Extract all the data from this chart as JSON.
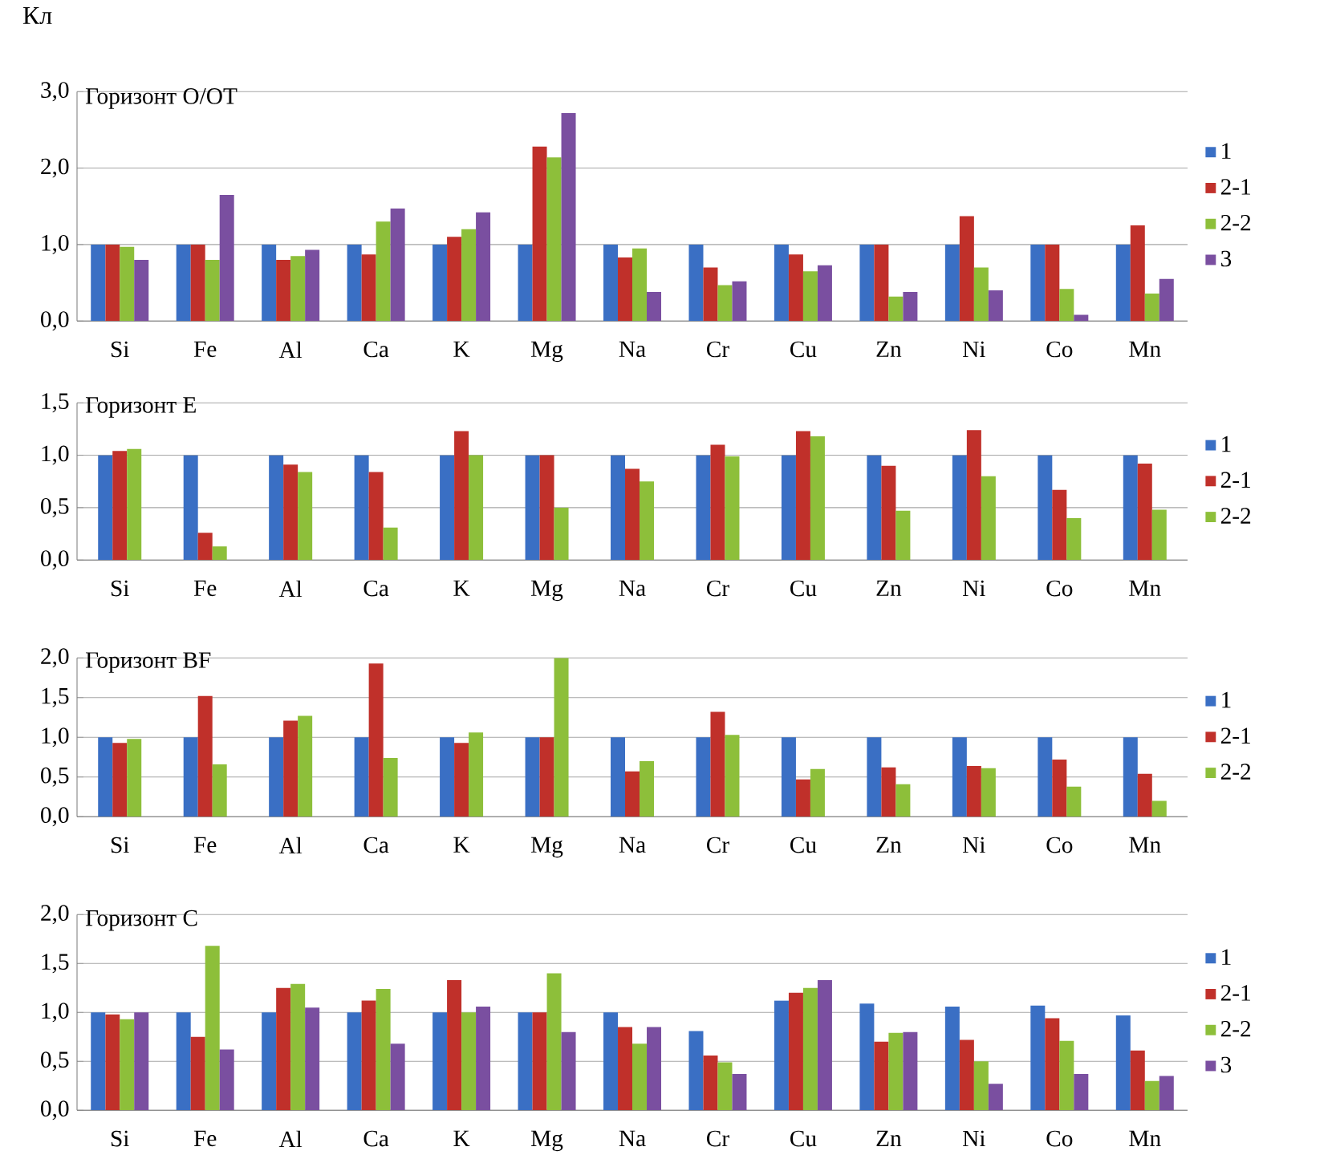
{
  "chart_data": [
    {
      "type": "bar",
      "title": "Горизонт O/OT",
      "ylabel": "Кл",
      "categories": [
        "Si",
        "Fe",
        "Al",
        "Ca",
        "K",
        "Mg",
        "Na",
        "Cr",
        "Cu",
        "Zn",
        "Ni",
        "Co",
        "Mn"
      ],
      "ylim": [
        0,
        3
      ],
      "yticks": [
        {
          "value": 0,
          "label": "0,0"
        },
        {
          "value": 1,
          "label": "1,0"
        },
        {
          "value": 2,
          "label": "2,0"
        },
        {
          "value": 3,
          "label": "3,0"
        }
      ],
      "grid": "y",
      "legend": "right",
      "series": [
        {
          "name": "1",
          "color": "#3a6fc4",
          "values": [
            1,
            1,
            1,
            1,
            1,
            1,
            1,
            1,
            1,
            1,
            1,
            1,
            1
          ]
        },
        {
          "name": "2-1",
          "color": "#c0302a",
          "values": [
            1.0,
            1.0,
            0.8,
            0.87,
            1.1,
            2.28,
            0.83,
            0.7,
            0.87,
            1.0,
            1.37,
            1.0,
            1.25
          ]
        },
        {
          "name": "2-2",
          "color": "#8dbf3a",
          "values": [
            0.97,
            0.8,
            0.85,
            1.3,
            1.2,
            2.14,
            0.95,
            0.47,
            0.65,
            0.32,
            0.7,
            0.42,
            0.36
          ]
        },
        {
          "name": "3",
          "color": "#7a4fa0",
          "values": [
            0.8,
            1.65,
            0.93,
            1.47,
            1.42,
            2.72,
            0.38,
            0.52,
            0.73,
            0.38,
            0.4,
            0.08,
            0.55
          ]
        }
      ]
    },
    {
      "type": "bar",
      "title": "Горизонт E",
      "categories": [
        "Si",
        "Fe",
        "Al",
        "Ca",
        "K",
        "Mg",
        "Na",
        "Cr",
        "Cu",
        "Zn",
        "Ni",
        "Co",
        "Mn"
      ],
      "ylim": [
        0,
        1.5
      ],
      "yticks": [
        {
          "value": 0,
          "label": "0,0"
        },
        {
          "value": 0.5,
          "label": "0,5"
        },
        {
          "value": 1,
          "label": "1,0"
        },
        {
          "value": 1.5,
          "label": "1,5"
        }
      ],
      "grid": "y",
      "legend": "right",
      "series": [
        {
          "name": "1",
          "color": "#3a6fc4",
          "values": [
            1,
            1,
            1,
            1,
            1,
            1,
            1,
            1,
            1,
            1,
            1,
            1,
            1
          ]
        },
        {
          "name": "2-1",
          "color": "#c0302a",
          "values": [
            1.04,
            0.26,
            0.91,
            0.84,
            1.23,
            1.0,
            0.87,
            1.1,
            1.23,
            0.9,
            1.24,
            0.67,
            0.92
          ]
        },
        {
          "name": "2-2",
          "color": "#8dbf3a",
          "values": [
            1.06,
            0.13,
            0.84,
            0.31,
            1.0,
            0.5,
            0.75,
            0.99,
            1.18,
            0.47,
            0.8,
            0.4,
            0.48
          ]
        }
      ]
    },
    {
      "type": "bar",
      "title": "Горизонт  BF",
      "categories": [
        "Si",
        "Fe",
        "Al",
        "Ca",
        "K",
        "Mg",
        "Na",
        "Cr",
        "Cu",
        "Zn",
        "Ni",
        "Co",
        "Mn"
      ],
      "ylim": [
        0,
        2
      ],
      "yticks": [
        {
          "value": 0,
          "label": "0,0"
        },
        {
          "value": 0.5,
          "label": "0,5"
        },
        {
          "value": 1,
          "label": "1,0"
        },
        {
          "value": 1.5,
          "label": "1,5"
        },
        {
          "value": 2,
          "label": "2,0"
        }
      ],
      "grid": "y",
      "legend": "right",
      "series": [
        {
          "name": "1",
          "color": "#3a6fc4",
          "values": [
            1,
            1,
            1,
            1,
            1,
            1,
            1,
            1,
            1,
            1,
            1,
            1,
            1
          ]
        },
        {
          "name": "2-1",
          "color": "#c0302a",
          "values": [
            0.93,
            1.52,
            1.21,
            1.93,
            0.93,
            1.0,
            0.57,
            1.32,
            0.47,
            0.62,
            0.64,
            0.72,
            0.54
          ]
        },
        {
          "name": "2-2",
          "color": "#8dbf3a",
          "values": [
            0.98,
            0.66,
            1.27,
            0.74,
            1.06,
            2.0,
            0.7,
            1.03,
            0.6,
            0.41,
            0.61,
            0.38,
            0.2
          ]
        }
      ]
    },
    {
      "type": "bar",
      "title": "Горизонт  C",
      "categories": [
        "Si",
        "Fe",
        "Al",
        "Ca",
        "K",
        "Mg",
        "Na",
        "Cr",
        "Cu",
        "Zn",
        "Ni",
        "Co",
        "Mn"
      ],
      "ylim": [
        0,
        2
      ],
      "yticks": [
        {
          "value": 0,
          "label": "0,0"
        },
        {
          "value": 0.5,
          "label": "0,5"
        },
        {
          "value": 1,
          "label": "1,0"
        },
        {
          "value": 1.5,
          "label": "1,5"
        },
        {
          "value": 2,
          "label": "2,0"
        }
      ],
      "grid": "y",
      "legend": "right",
      "series": [
        {
          "name": "1",
          "color": "#3a6fc4",
          "values": [
            1,
            1,
            1,
            1,
            1,
            1,
            1,
            0.81,
            1.12,
            1.09,
            1.06,
            1.07,
            0.97
          ]
        },
        {
          "name": "2-1",
          "color": "#c0302a",
          "values": [
            0.98,
            0.75,
            1.25,
            1.12,
            1.33,
            1.0,
            0.85,
            0.56,
            1.2,
            0.7,
            0.72,
            0.94,
            0.61
          ]
        },
        {
          "name": "2-2",
          "color": "#8dbf3a",
          "values": [
            0.93,
            1.68,
            1.29,
            1.24,
            1.0,
            1.4,
            0.68,
            0.49,
            1.25,
            0.79,
            0.5,
            0.71,
            0.3
          ]
        },
        {
          "name": "3",
          "color": "#7a4fa0",
          "values": [
            1.0,
            0.62,
            1.05,
            0.68,
            1.06,
            0.8,
            0.85,
            0.37,
            1.33,
            0.8,
            0.27,
            0.37,
            0.35
          ]
        }
      ]
    }
  ]
}
